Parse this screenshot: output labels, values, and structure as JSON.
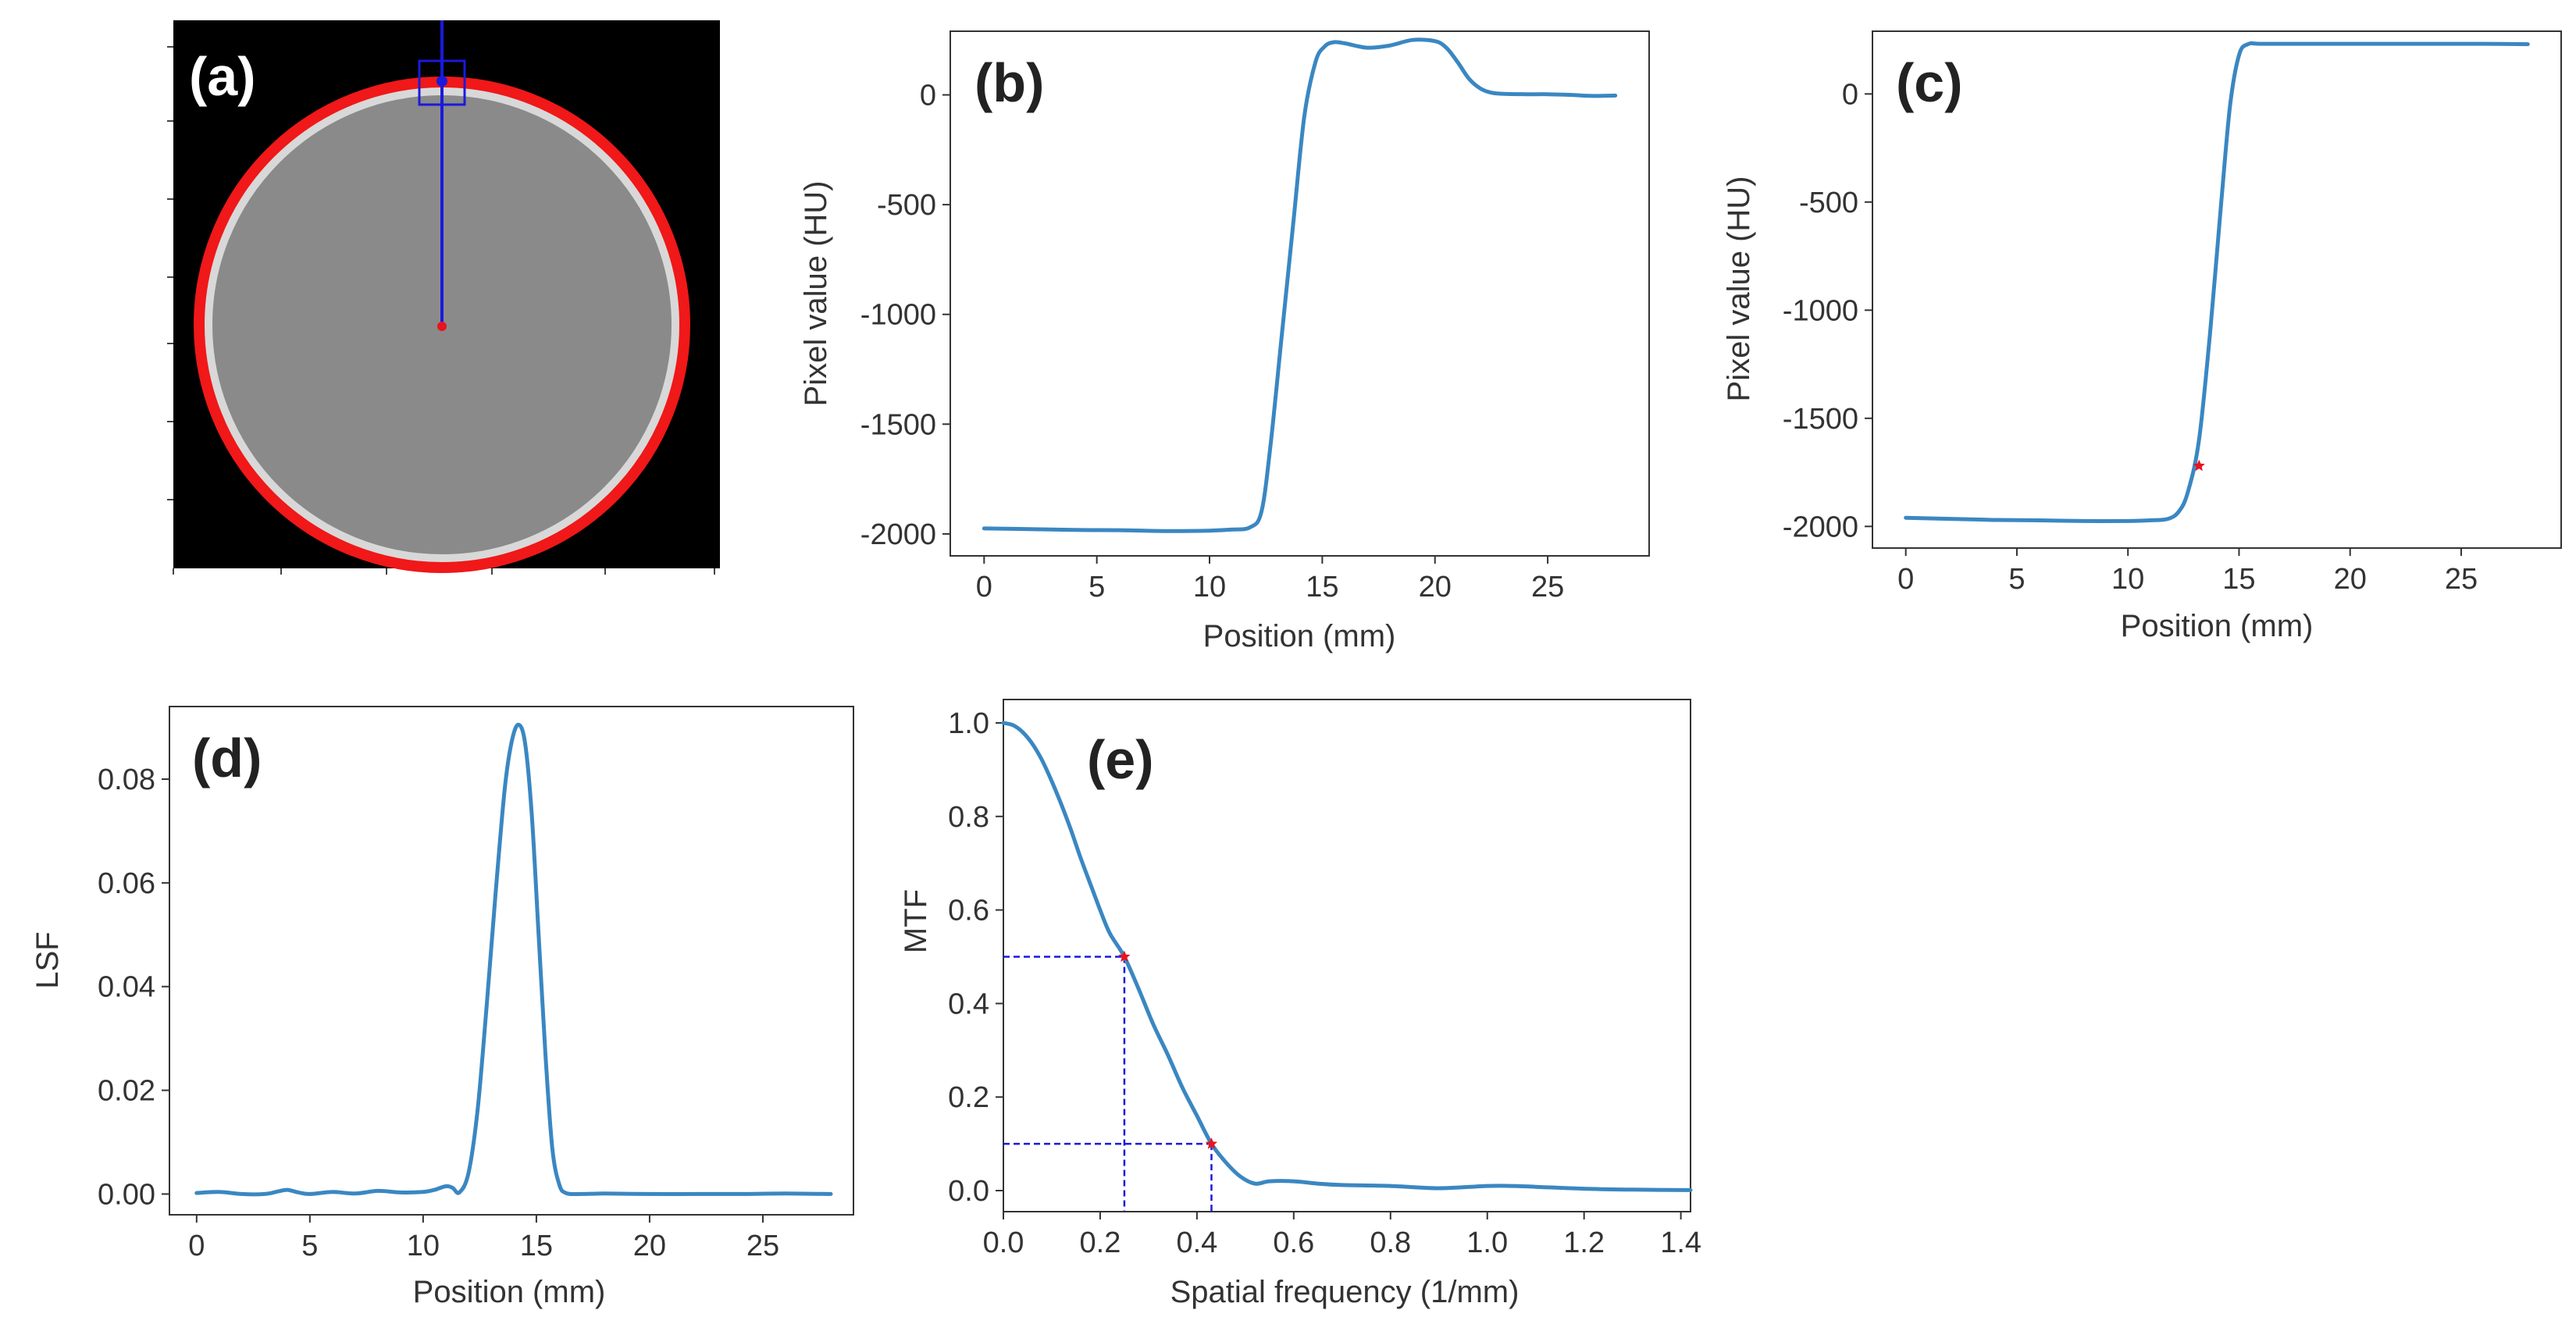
{
  "colors": {
    "curve": "#3a87c2",
    "marker": "#e8141e",
    "guide": "#1a1adc",
    "ring": "#f01818",
    "phantom": "#8a8a8a",
    "background": "#000000"
  },
  "panels": {
    "a": {
      "label": "(a)"
    },
    "b": {
      "label": "(b)"
    },
    "c": {
      "label": "(c)"
    },
    "d": {
      "label": "(d)"
    },
    "e": {
      "label": "(e)"
    }
  },
  "chart_data": [
    {
      "id": "b",
      "type": "line",
      "xlabel": "Position (mm)",
      "ylabel": "Pixel value (HU)",
      "xlim": [
        -1.5,
        29.5
      ],
      "ylim": [
        -2100,
        290
      ],
      "xticks": [
        0,
        5,
        10,
        15,
        20,
        25
      ],
      "yticks": [
        0,
        -500,
        -1000,
        -1500,
        -2000
      ],
      "x": [
        0,
        2,
        4,
        6,
        8,
        10,
        11,
        11.8,
        12.3,
        12.7,
        13.2,
        13.7,
        14.2,
        14.7,
        15.1,
        15.5,
        16,
        17,
        18,
        19,
        20,
        20.5,
        21,
        21.5,
        22,
        22.5,
        23,
        24,
        25,
        26,
        27,
        28
      ],
      "y": [
        -1975,
        -1978,
        -1982,
        -1983,
        -1987,
        -1985,
        -1980,
        -1970,
        -1900,
        -1600,
        -1100,
        -600,
        -100,
        150,
        220,
        240,
        235,
        215,
        225,
        250,
        245,
        215,
        150,
        75,
        30,
        10,
        5,
        3,
        3,
        0,
        -5,
        -3
      ],
      "markers": []
    },
    {
      "id": "c",
      "type": "line",
      "xlabel": "Position (mm)",
      "ylabel": "Pixel value (HU)",
      "xlim": [
        -1.5,
        29.5
      ],
      "ylim": [
        -2100,
        290
      ],
      "xticks": [
        0,
        5,
        10,
        15,
        20,
        25
      ],
      "yticks": [
        0,
        -500,
        -1000,
        -1500,
        -2000
      ],
      "x": [
        0,
        2,
        4,
        6,
        8,
        10,
        11,
        11.8,
        12.3,
        12.7,
        13.2,
        13.7,
        14.2,
        14.6,
        15,
        15.4,
        16,
        18,
        20,
        22,
        24,
        26,
        28
      ],
      "y": [
        -1960,
        -1965,
        -1970,
        -1972,
        -1975,
        -1975,
        -1972,
        -1965,
        -1930,
        -1840,
        -1600,
        -1100,
        -500,
        -50,
        180,
        230,
        232,
        232,
        232,
        232,
        232,
        232,
        230
      ],
      "markers": [
        {
          "x": 13.2,
          "y": -1720
        }
      ]
    },
    {
      "id": "d",
      "type": "line",
      "xlabel": "Position (mm)",
      "ylabel": "LSF",
      "xlim": [
        -1.2,
        29
      ],
      "ylim": [
        -0.004,
        0.094
      ],
      "xticks": [
        0,
        5,
        10,
        15,
        20,
        25
      ],
      "yticks": [
        "0.00",
        "0.02",
        "0.04",
        "0.06",
        "0.08"
      ],
      "x": [
        0,
        1,
        2,
        3,
        3.6,
        4,
        4.5,
        5,
        6,
        7,
        8,
        9,
        10,
        10.5,
        11,
        11.3,
        11.6,
        12,
        12.4,
        12.8,
        13.2,
        13.6,
        13.9,
        14.2,
        14.5,
        14.8,
        15.1,
        15.4,
        15.7,
        16,
        16.3,
        17,
        18,
        20,
        22,
        24,
        26,
        28
      ],
      "y": [
        0.0002,
        0.0004,
        0,
        0,
        0.0005,
        0.0008,
        0.0003,
        0,
        0.0004,
        0.0001,
        0.0006,
        0.0003,
        0.0004,
        0.0008,
        0.0015,
        0.0012,
        0.0003,
        0.004,
        0.016,
        0.036,
        0.058,
        0.078,
        0.087,
        0.0905,
        0.087,
        0.073,
        0.05,
        0.027,
        0.009,
        0.002,
        0.0002,
        0,
        0.0001,
        0,
        0,
        0,
        0.0001,
        0
      ],
      "markers": []
    },
    {
      "id": "e",
      "type": "line",
      "xlabel": "Spatial frequency (1/mm)",
      "ylabel": "MTF",
      "xlim": [
        0,
        1.42
      ],
      "ylim": [
        -0.045,
        1.05
      ],
      "xticks": [
        "0.0",
        "0.2",
        "0.4",
        "0.6",
        "0.8",
        "1.0",
        "1.2",
        "1.4"
      ],
      "yticks": [
        "0.0",
        "0.2",
        "0.4",
        "0.6",
        "0.8",
        "1.0"
      ],
      "x": [
        0,
        0.02,
        0.04,
        0.06,
        0.08,
        0.1,
        0.12,
        0.14,
        0.16,
        0.18,
        0.2,
        0.22,
        0.25,
        0.28,
        0.31,
        0.34,
        0.37,
        0.4,
        0.43,
        0.46,
        0.49,
        0.52,
        0.55,
        0.6,
        0.65,
        0.7,
        0.8,
        0.9,
        1.0,
        1.05,
        1.1,
        1.2,
        1.3,
        1.42
      ],
      "y": [
        1.0,
        0.995,
        0.98,
        0.955,
        0.92,
        0.875,
        0.825,
        0.77,
        0.71,
        0.655,
        0.6,
        0.55,
        0.5,
        0.43,
        0.355,
        0.29,
        0.22,
        0.16,
        0.1,
        0.06,
        0.03,
        0.015,
        0.02,
        0.02,
        0.015,
        0.012,
        0.01,
        0.005,
        0.01,
        0.01,
        0.008,
        0.004,
        0.002,
        0.001
      ],
      "markers": [
        {
          "x": 0.25,
          "y": 0.5
        },
        {
          "x": 0.43,
          "y": 0.1
        }
      ],
      "guides": [
        {
          "x": 0.25,
          "y": 0.5
        },
        {
          "x": 0.43,
          "y": 0.1
        }
      ]
    }
  ]
}
